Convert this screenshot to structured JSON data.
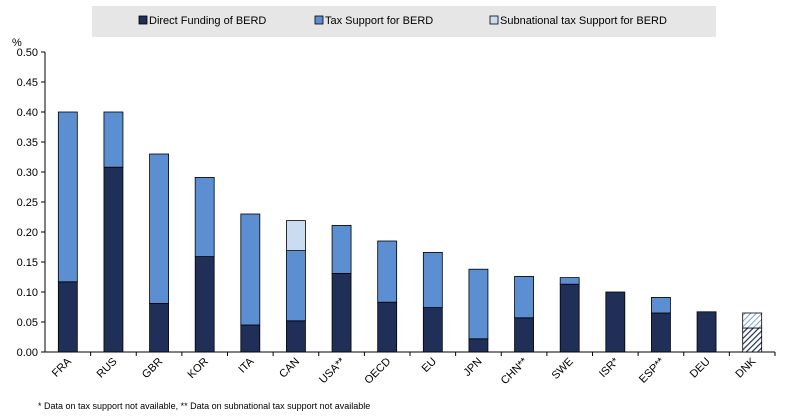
{
  "chart_data": {
    "type": "bar",
    "stacked": true,
    "ylabel": "%",
    "ylim": [
      0,
      0.5
    ],
    "yticks": [
      "0.00",
      "0.05",
      "0.10",
      "0.15",
      "0.20",
      "0.25",
      "0.30",
      "0.35",
      "0.40",
      "0.45",
      "0.50"
    ],
    "grid": false,
    "legend_position": "top",
    "categories": [
      "FRA",
      "RUS",
      "GBR",
      "KOR",
      "ITA",
      "CAN",
      "USA**",
      "OECD",
      "EU",
      "JPN",
      "CHN**",
      "SWE",
      "ISR*",
      "ESP**",
      "DEU",
      "DNK"
    ],
    "series": [
      {
        "name": "Direct Funding of BERD",
        "color": "#1f2f57",
        "values": [
          0.117,
          0.308,
          0.081,
          0.159,
          0.045,
          0.052,
          0.131,
          0.083,
          0.074,
          0.022,
          0.057,
          0.113,
          0.1,
          0.065,
          0.067,
          0.04
        ]
      },
      {
        "name": "Tax Support for BERD",
        "color": "#5b8fd1",
        "values": [
          0.283,
          0.092,
          0.249,
          0.132,
          0.185,
          0.117,
          0.08,
          0.102,
          0.092,
          0.116,
          0.069,
          0.011,
          0.0,
          0.026,
          0.0,
          0.0
        ]
      },
      {
        "name": "Subnational tax Support for BERD",
        "color": "#c9dcf2",
        "values": [
          0.0,
          0.0,
          0.0,
          0.0,
          0.0,
          0.05,
          0.0,
          0.0,
          0.0,
          0.0,
          0.0,
          0.0,
          0.0,
          0.0,
          0.0,
          0.025
        ]
      }
    ],
    "hatched_categories": [
      "DNK"
    ],
    "footnote": "* Data on tax support not available, ** Data on subnational tax support not available"
  },
  "legend": {
    "background": "#e6e6e6",
    "items": [
      {
        "label": "Direct Funding of BERD",
        "color": "#1f2f57"
      },
      {
        "label": "Tax Support for BERD",
        "color": "#5b8fd1"
      },
      {
        "label": "Subnational tax Support for BERD",
        "color": "#c9dcf2"
      }
    ]
  },
  "colors": {
    "plot_background": "#ffffff",
    "axis": "#000000",
    "bar_border": "#000000"
  }
}
